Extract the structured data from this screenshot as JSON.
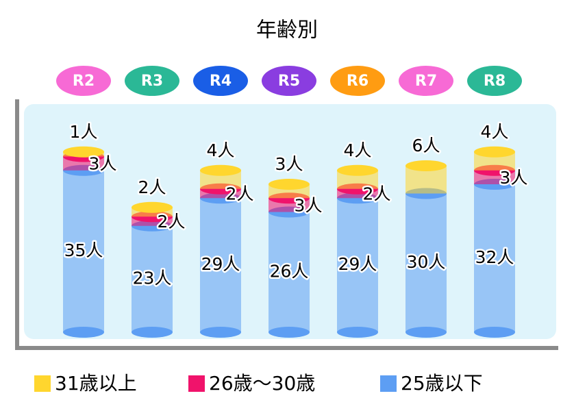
{
  "chart_data": {
    "type": "stacked-cylinder",
    "title": "年齢別",
    "categories": [
      "R2",
      "R3",
      "R4",
      "R5",
      "R6",
      "R7",
      "R8"
    ],
    "category_colors": [
      "#f76ad5",
      "#2bb896",
      "#1a5ee6",
      "#8a3de0",
      "#ff9c12",
      "#f76ad5",
      "#2bb896"
    ],
    "series": [
      {
        "name": "25歳以下",
        "color": "#5d9ef3",
        "values": [
          35,
          23,
          29,
          26,
          29,
          30,
          32
        ],
        "value_labels": [
          "35人",
          "23人",
          "29人",
          "26人",
          "29人",
          "30人",
          "32人"
        ]
      },
      {
        "name": "26歳～30歳",
        "color": "#f0136b",
        "values": [
          3,
          2,
          2,
          3,
          2,
          null,
          3
        ],
        "value_labels": [
          "3人",
          "2人",
          "2人",
          "3人",
          "2人",
          null,
          "3人"
        ]
      },
      {
        "name": "31歳以上",
        "color": "#ffd62e",
        "values": [
          1,
          2,
          4,
          3,
          4,
          6,
          4
        ],
        "value_labels": [
          "1人",
          "2人",
          "4人",
          "3人",
          "4人",
          "6人",
          "4人"
        ]
      }
    ],
    "legend_order": [
      2,
      1,
      0
    ]
  }
}
